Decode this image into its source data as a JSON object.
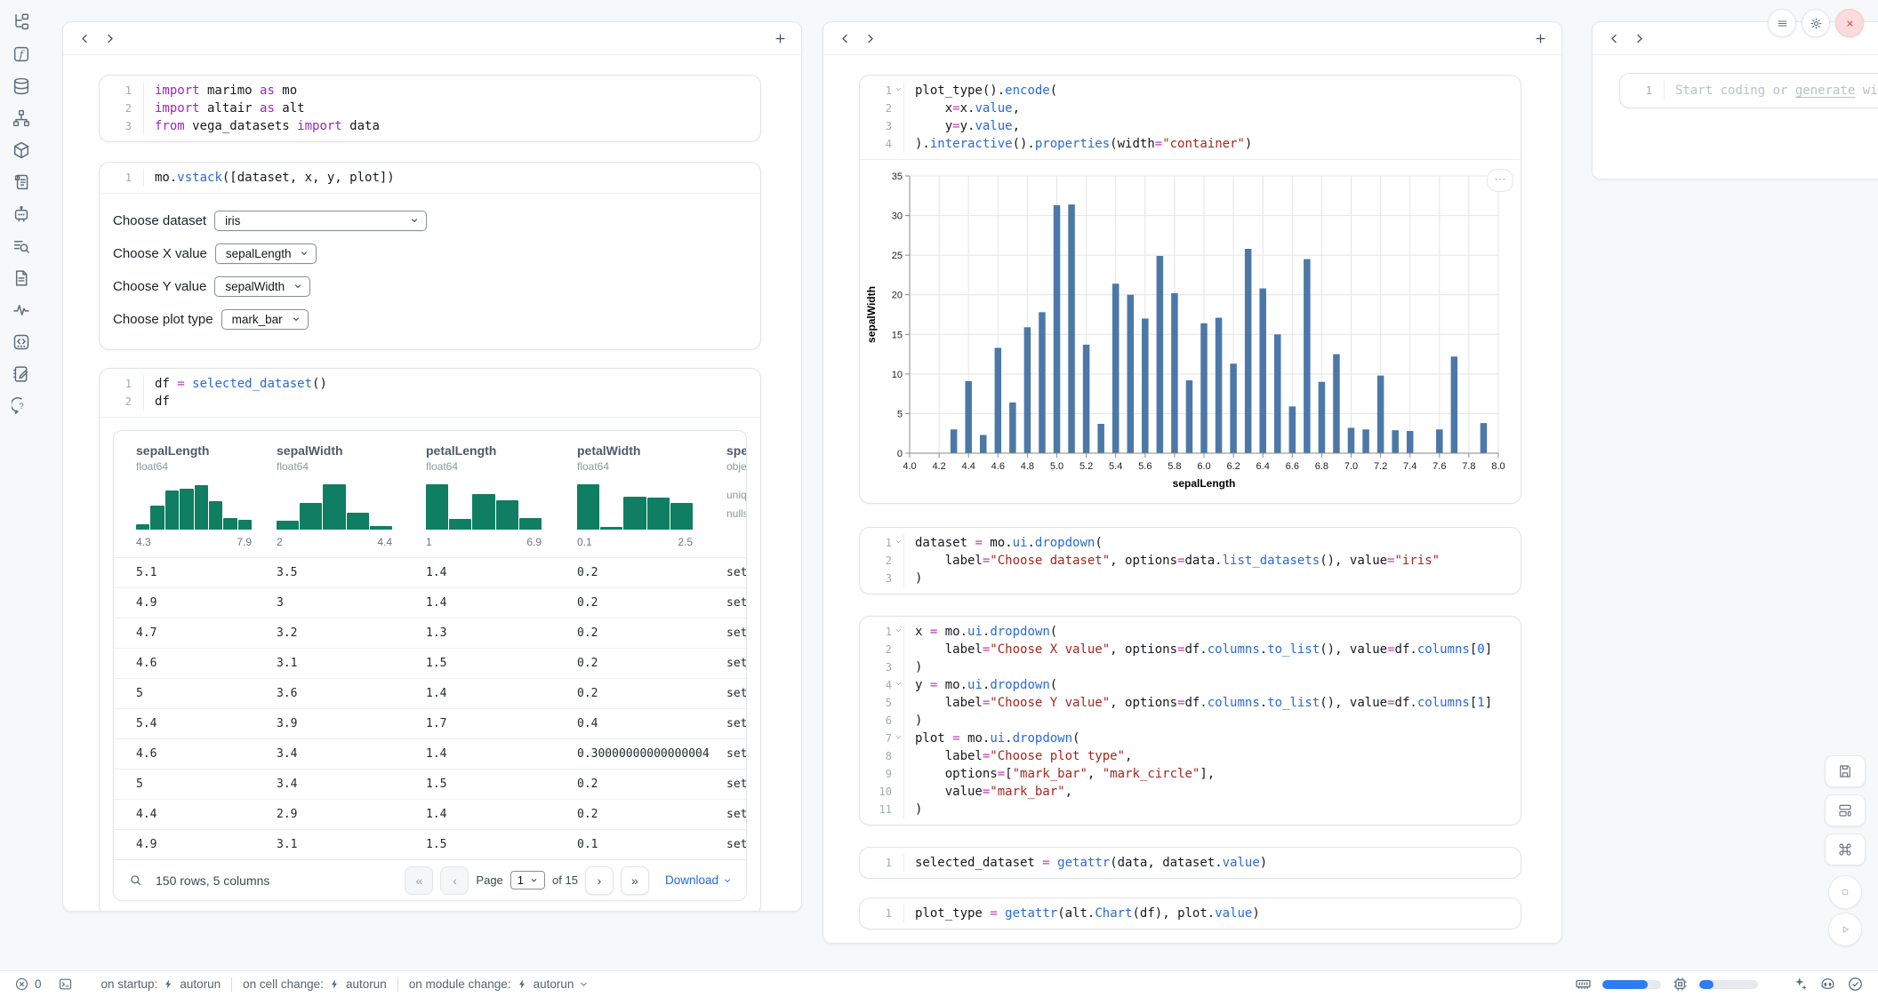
{
  "colors": {
    "accent": "#2d7df0",
    "histogram": "#0f7e62",
    "bar": "#4c78a8",
    "close_red": "#d95050"
  },
  "sidebar": {
    "icons": [
      "file-tree",
      "variables",
      "database",
      "dependencies",
      "packages",
      "logs",
      "ai-chat",
      "outline",
      "documentation",
      "tracing",
      "snippets",
      "scratchpad",
      "help"
    ]
  },
  "columns": {
    "left": {
      "cells": [
        {
          "fold": [],
          "lines": [
            [
              [
                "kw",
                "import"
              ],
              [
                "tx",
                " marimo "
              ],
              [
                "kw",
                "as"
              ],
              [
                "tx",
                " mo"
              ]
            ],
            [
              [
                "kw",
                "import"
              ],
              [
                "tx",
                " altair "
              ],
              [
                "kw",
                "as"
              ],
              [
                "tx",
                " alt"
              ]
            ],
            [
              [
                "kw",
                "from"
              ],
              [
                "tx",
                " vega_datasets "
              ],
              [
                "kw",
                "import"
              ],
              [
                "tx",
                " data"
              ]
            ]
          ]
        },
        {
          "fold": [],
          "lines": [
            [
              [
                "tx",
                "mo."
              ],
              [
                "fn",
                "vstack"
              ],
              [
                "tx",
                "([dataset, x, y, plot])"
              ]
            ]
          ],
          "controls": [
            {
              "label": "Choose dataset",
              "value": "iris",
              "wide": true
            },
            {
              "label": "Choose X value",
              "value": "sepalLength",
              "wide": false
            },
            {
              "label": "Choose Y value",
              "value": "sepalWidth",
              "wide": false
            },
            {
              "label": "Choose plot type",
              "value": "mark_bar",
              "wide": false
            }
          ]
        },
        {
          "fold": [],
          "lines": [
            [
              [
                "tx",
                "df "
              ],
              [
                "op",
                "="
              ],
              [
                "tx",
                " "
              ],
              [
                "fn",
                "selected_dataset"
              ],
              [
                "tx",
                "()"
              ]
            ],
            [
              [
                "tx",
                "df"
              ]
            ]
          ]
        }
      ],
      "table": {
        "columns": [
          {
            "name": "sepalLength",
            "type": "float64",
            "min": "4.3",
            "max": "7.9",
            "hist": [
              0.12,
              0.5,
              0.82,
              0.86,
              0.92,
              0.6,
              0.25,
              0.2
            ]
          },
          {
            "name": "sepalWidth",
            "type": "float64",
            "min": "2",
            "max": "4.4",
            "hist": [
              0.18,
              0.55,
              0.95,
              0.35,
              0.07
            ]
          },
          {
            "name": "petalLength",
            "type": "float64",
            "min": "1",
            "max": "6.9",
            "hist": [
              0.95,
              0.22,
              0.75,
              0.62,
              0.25
            ]
          },
          {
            "name": "petalWidth",
            "type": "float64",
            "min": "0.1",
            "max": "2.5",
            "hist": [
              0.95,
              0.05,
              0.68,
              0.66,
              0.55
            ]
          },
          {
            "name": "species",
            "type": "object",
            "stats": [
              "unique:",
              "nulls:"
            ]
          }
        ],
        "rows": [
          [
            "5.1",
            "3.5",
            "1.4",
            "0.2",
            "setosa"
          ],
          [
            "4.9",
            "3",
            "1.4",
            "0.2",
            "setosa"
          ],
          [
            "4.7",
            "3.2",
            "1.3",
            "0.2",
            "setosa"
          ],
          [
            "4.6",
            "3.1",
            "1.5",
            "0.2",
            "setosa"
          ],
          [
            "5",
            "3.6",
            "1.4",
            "0.2",
            "setosa"
          ],
          [
            "5.4",
            "3.9",
            "1.7",
            "0.4",
            "setosa"
          ],
          [
            "4.6",
            "3.4",
            "1.4",
            "0.30000000000000004",
            "setosa"
          ],
          [
            "5",
            "3.4",
            "1.5",
            "0.2",
            "setosa"
          ],
          [
            "4.4",
            "2.9",
            "1.4",
            "0.2",
            "setosa"
          ],
          [
            "4.9",
            "3.1",
            "1.5",
            "0.1",
            "setosa"
          ]
        ],
        "footer": {
          "summary": "150 rows, 5 columns",
          "page_label": "Page",
          "page_value": "1",
          "page_total": "of 15",
          "download_label": "Download"
        }
      }
    },
    "middle": {
      "cells": [
        {
          "fold": [
            1
          ],
          "lines": [
            [
              [
                "tx",
                "plot_type()."
              ],
              [
                "fn",
                "encode"
              ],
              [
                "tx",
                "("
              ]
            ],
            [
              [
                "tx",
                "    x"
              ],
              [
                "op",
                "="
              ],
              [
                "tx",
                "x."
              ],
              [
                "fn",
                "value"
              ],
              [
                "tx",
                ","
              ]
            ],
            [
              [
                "tx",
                "    y"
              ],
              [
                "op",
                "="
              ],
              [
                "tx",
                "y."
              ],
              [
                "fn",
                "value"
              ],
              [
                "tx",
                ","
              ]
            ],
            [
              [
                "tx",
                ")."
              ],
              [
                "fn",
                "interactive"
              ],
              [
                "tx",
                "()."
              ],
              [
                "fn",
                "properties"
              ],
              [
                "tx",
                "(width"
              ],
              [
                "op",
                "="
              ],
              [
                "st",
                "\"container\""
              ],
              [
                "tx",
                ")"
              ]
            ]
          ]
        },
        {
          "fold": [
            1
          ],
          "lines": [
            [
              [
                "tx",
                "dataset "
              ],
              [
                "op",
                "="
              ],
              [
                "tx",
                " mo."
              ],
              [
                "fn",
                "ui"
              ],
              [
                "tx",
                "."
              ],
              [
                "fn",
                "dropdown"
              ],
              [
                "tx",
                "("
              ]
            ],
            [
              [
                "tx",
                "    label"
              ],
              [
                "op",
                "="
              ],
              [
                "st",
                "\"Choose dataset\""
              ],
              [
                "tx",
                ", options"
              ],
              [
                "op",
                "="
              ],
              [
                "tx",
                "data."
              ],
              [
                "fn",
                "list_datasets"
              ],
              [
                "tx",
                "(), value"
              ],
              [
                "op",
                "="
              ],
              [
                "st",
                "\"iris\""
              ]
            ],
            [
              [
                "tx",
                ")"
              ]
            ]
          ]
        },
        {
          "fold": [
            1,
            4,
            7
          ],
          "lines": [
            [
              [
                "tx",
                "x "
              ],
              [
                "op",
                "="
              ],
              [
                "tx",
                " mo."
              ],
              [
                "fn",
                "ui"
              ],
              [
                "tx",
                "."
              ],
              [
                "fn",
                "dropdown"
              ],
              [
                "tx",
                "("
              ]
            ],
            [
              [
                "tx",
                "    label"
              ],
              [
                "op",
                "="
              ],
              [
                "st",
                "\"Choose X value\""
              ],
              [
                "tx",
                ", options"
              ],
              [
                "op",
                "="
              ],
              [
                "tx",
                "df."
              ],
              [
                "fn",
                "columns"
              ],
              [
                "tx",
                "."
              ],
              [
                "fn",
                "to_list"
              ],
              [
                "tx",
                "(), value"
              ],
              [
                "op",
                "="
              ],
              [
                "tx",
                "df."
              ],
              [
                "fn",
                "columns"
              ],
              [
                "tx",
                "["
              ],
              [
                "nm",
                "0"
              ],
              [
                "tx",
                "]"
              ]
            ],
            [
              [
                "tx",
                ")"
              ]
            ],
            [
              [
                "tx",
                "y "
              ],
              [
                "op",
                "="
              ],
              [
                "tx",
                " mo."
              ],
              [
                "fn",
                "ui"
              ],
              [
                "tx",
                "."
              ],
              [
                "fn",
                "dropdown"
              ],
              [
                "tx",
                "("
              ]
            ],
            [
              [
                "tx",
                "    label"
              ],
              [
                "op",
                "="
              ],
              [
                "st",
                "\"Choose Y value\""
              ],
              [
                "tx",
                ", options"
              ],
              [
                "op",
                "="
              ],
              [
                "tx",
                "df."
              ],
              [
                "fn",
                "columns"
              ],
              [
                "tx",
                "."
              ],
              [
                "fn",
                "to_list"
              ],
              [
                "tx",
                "(), value"
              ],
              [
                "op",
                "="
              ],
              [
                "tx",
                "df."
              ],
              [
                "fn",
                "columns"
              ],
              [
                "tx",
                "["
              ],
              [
                "nm",
                "1"
              ],
              [
                "tx",
                "]"
              ]
            ],
            [
              [
                "tx",
                ")"
              ]
            ],
            [
              [
                "tx",
                "plot "
              ],
              [
                "op",
                "="
              ],
              [
                "tx",
                " mo."
              ],
              [
                "fn",
                "ui"
              ],
              [
                "tx",
                "."
              ],
              [
                "fn",
                "dropdown"
              ],
              [
                "tx",
                "("
              ]
            ],
            [
              [
                "tx",
                "    label"
              ],
              [
                "op",
                "="
              ],
              [
                "st",
                "\"Choose plot type\""
              ],
              [
                "tx",
                ","
              ]
            ],
            [
              [
                "tx",
                "    options"
              ],
              [
                "op",
                "="
              ],
              [
                "tx",
                "["
              ],
              [
                "st",
                "\"mark_bar\""
              ],
              [
                "tx",
                ", "
              ],
              [
                "st",
                "\"mark_circle\""
              ],
              [
                "tx",
                "],"
              ]
            ],
            [
              [
                "tx",
                "    value"
              ],
              [
                "op",
                "="
              ],
              [
                "st",
                "\"mark_bar\""
              ],
              [
                "tx",
                ","
              ]
            ],
            [
              [
                "tx",
                ")"
              ]
            ]
          ]
        },
        {
          "fold": [],
          "lines": [
            [
              [
                "tx",
                "selected_dataset "
              ],
              [
                "op",
                "="
              ],
              [
                "tx",
                " "
              ],
              [
                "fn",
                "getattr"
              ],
              [
                "tx",
                "(data, dataset."
              ],
              [
                "fn",
                "value"
              ],
              [
                "tx",
                ")"
              ]
            ]
          ]
        },
        {
          "fold": [],
          "lines": [
            [
              [
                "tx",
                "plot_type "
              ],
              [
                "op",
                "="
              ],
              [
                "tx",
                " "
              ],
              [
                "fn",
                "getattr"
              ],
              [
                "tx",
                "(alt."
              ],
              [
                "fn",
                "Chart"
              ],
              [
                "tx",
                "(df), plot."
              ],
              [
                "fn",
                "value"
              ],
              [
                "tx",
                ")"
              ]
            ]
          ]
        }
      ]
    },
    "right": {
      "line_number": "1",
      "placeholder_prefix": "Start coding or ",
      "placeholder_link": "generate",
      "placeholder_suffix": " with"
    }
  },
  "chart_data": {
    "type": "bar",
    "x": [
      4.3,
      4.4,
      4.5,
      4.6,
      4.7,
      4.8,
      4.9,
      5.0,
      5.1,
      5.2,
      5.3,
      5.4,
      5.5,
      5.6,
      5.7,
      5.8,
      5.9,
      6.0,
      6.1,
      6.2,
      6.3,
      6.4,
      6.5,
      6.6,
      6.7,
      6.8,
      6.9,
      7.0,
      7.1,
      7.2,
      7.3,
      7.4,
      7.6,
      7.7,
      7.9
    ],
    "values": [
      3.0,
      9.1,
      2.3,
      13.3,
      6.4,
      15.9,
      17.8,
      31.3,
      31.4,
      13.7,
      3.7,
      21.4,
      20.0,
      17.0,
      24.9,
      20.2,
      9.2,
      16.4,
      17.1,
      11.3,
      25.8,
      20.8,
      15.0,
      5.9,
      24.5,
      9.0,
      12.5,
      3.2,
      3.0,
      9.8,
      2.9,
      2.8,
      3.0,
      12.2,
      3.8
    ],
    "title": "",
    "xlabel": "sepalLength",
    "ylabel": "sepalWidth",
    "xlim": [
      4.0,
      8.0
    ],
    "ylim": [
      0,
      35
    ],
    "x_tick_step": 0.2,
    "y_tick_step": 5,
    "grid": true,
    "bar_color": "#4c78a8"
  },
  "statusbar": {
    "error_count": "0",
    "segments": [
      {
        "label": "on startup:",
        "value": "autorun",
        "caret": false
      },
      {
        "label": "on cell change:",
        "value": "autorun",
        "caret": false
      },
      {
        "label": "on module change:",
        "value": "autorun",
        "caret": true
      }
    ],
    "ram_pct": 78,
    "cpu_pct": 24
  }
}
